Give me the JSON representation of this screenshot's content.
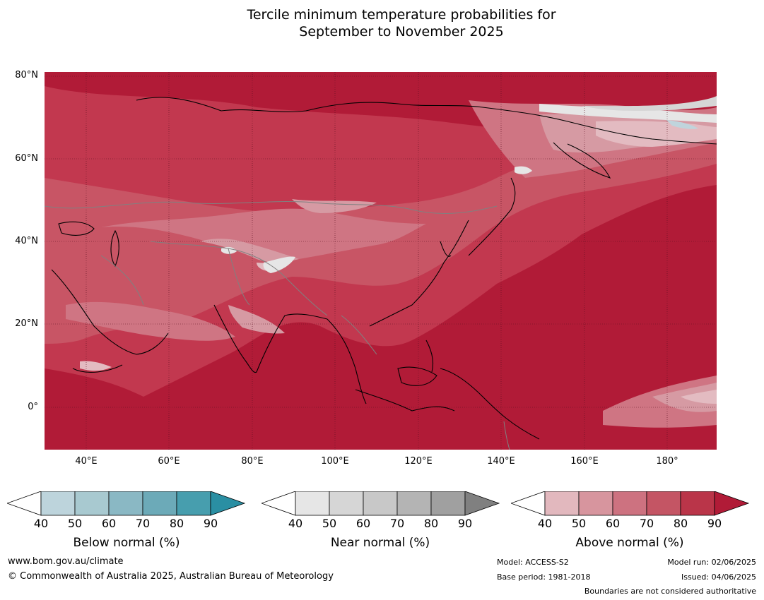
{
  "title_line1": "Tercile minimum temperature probabilities for",
  "title_line2": "September to November 2025",
  "map": {
    "lat_labels": [
      "80°N",
      "60°N",
      "40°N",
      "20°N",
      "0°"
    ],
    "lon_labels": [
      "40°E",
      "60°E",
      "80°E",
      "100°E",
      "120°E",
      "140°E",
      "160°E",
      "180°"
    ],
    "colors": {
      "above_90": "#b11b37",
      "above_80": "#c2384f",
      "above_70": "#c85565",
      "above_60": "#cf7583",
      "above_50": "#d69aa3",
      "above_40": "#e3bbc1",
      "near_40": "#e6e6e6",
      "near_50": "#d6d6d6",
      "below_40": "#c0d4dc",
      "coast": "#000000",
      "border": "#808080"
    }
  },
  "legends": [
    {
      "name": "Below normal (%)",
      "ticks": [
        "40",
        "50",
        "60",
        "70",
        "80",
        "90"
      ],
      "colors": [
        "#bdd4dc",
        "#a8c9d0",
        "#8ab8c4",
        "#6caab8",
        "#479eae",
        "#2a8fa3"
      ]
    },
    {
      "name": "Near normal (%)",
      "ticks": [
        "40",
        "50",
        "60",
        "70",
        "80",
        "90"
      ],
      "colors": [
        "#e6e6e6",
        "#d6d6d6",
        "#c8c8c8",
        "#b4b4b4",
        "#a0a0a0",
        "#808080"
      ]
    },
    {
      "name": "Above normal (%)",
      "ticks": [
        "40",
        "50",
        "60",
        "70",
        "80",
        "90"
      ],
      "colors": [
        "#e2b8be",
        "#d7959e",
        "#cd7280",
        "#c45564",
        "#ba3549",
        "#b11b37"
      ]
    }
  ],
  "footer": {
    "website": "www.bom.gov.au/climate",
    "copyright": "© Commonwealth of Australia 2025, Australian Bureau of Meteorology",
    "model": "Model: ACCESS-S2",
    "base_period": "Base period: 1981-2018",
    "model_run": "Model run: 02/06/2025",
    "issued": "Issued: 04/06/2025",
    "disclaimer": "Boundaries are not considered authoritative"
  }
}
